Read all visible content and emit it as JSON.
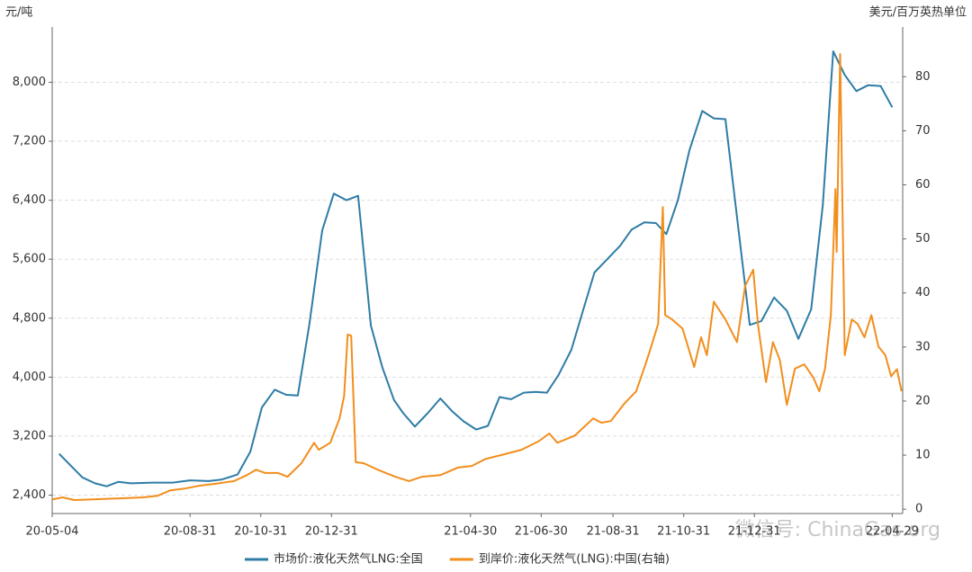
{
  "chart_data": {
    "type": "line",
    "y_label": "元/吨",
    "y2_label": "美元/百万英热单位",
    "watermark": "微信号: ChinaGas.org",
    "xlim": [
      "20-05-04",
      "22-05-08"
    ],
    "xticks": [
      "20-05-04",
      "20-08-31",
      "20-10-31",
      "20-12-31",
      "21-04-30",
      "21-06-30",
      "21-08-31",
      "21-10-31",
      "21-12-31",
      "22-04-29"
    ],
    "ylim": [
      2150,
      8750
    ],
    "yticks": [
      {
        "value": 2400,
        "label": "2,400"
      },
      {
        "value": 3200,
        "label": "3,200"
      },
      {
        "value": 4000,
        "label": "4,000"
      },
      {
        "value": 4800,
        "label": "4,800"
      },
      {
        "value": 5600,
        "label": "5,600"
      },
      {
        "value": 6400,
        "label": "6,400"
      },
      {
        "value": 7200,
        "label": "7,200"
      },
      {
        "value": 8000,
        "label": "8,000"
      }
    ],
    "y2lim": [
      -0.8,
      89.2
    ],
    "y2ticks": [
      0,
      10,
      20,
      30,
      40,
      50,
      60,
      70,
      80
    ],
    "grid": true,
    "series": [
      {
        "name": "市场价:液化天然气LNG:全国",
        "color": "#2e7ca6",
        "axis": "y",
        "x": [
          "20-05-10",
          "20-05-30",
          "20-06-10",
          "20-06-20",
          "20-06-30",
          "20-07-11",
          "20-07-30",
          "20-08-16",
          "20-08-31",
          "20-09-16",
          "20-09-27",
          "20-10-11",
          "20-10-22",
          "20-11-01",
          "20-11-12",
          "20-11-22",
          "20-12-02",
          "20-12-12",
          "20-12-23",
          "21-01-02",
          "21-01-13",
          "21-01-23",
          "21-02-03",
          "21-02-13",
          "21-02-23",
          "21-03-03",
          "21-03-13",
          "21-03-24",
          "21-04-04",
          "21-04-14",
          "21-04-24",
          "21-05-05",
          "21-05-15",
          "21-05-25",
          "21-06-04",
          "21-06-15",
          "21-06-25",
          "21-07-05",
          "21-07-15",
          "21-07-26",
          "21-08-05",
          "21-08-15",
          "21-08-26",
          "21-09-06",
          "21-09-16",
          "21-09-27",
          "21-10-07",
          "21-10-16",
          "21-10-26",
          "21-11-05",
          "21-11-16",
          "21-11-26",
          "21-12-06",
          "21-12-27",
          "22-01-06",
          "22-01-17",
          "22-01-28",
          "22-02-07",
          "22-02-18",
          "22-02-28",
          "22-03-09",
          "22-03-19",
          "22-03-29",
          "22-04-08",
          "22-04-19",
          "22-04-29"
        ],
        "values": [
          2960,
          2640,
          2560,
          2520,
          2580,
          2560,
          2570,
          2570,
          2600,
          2590,
          2610,
          2680,
          2990,
          3590,
          3830,
          3760,
          3750,
          4720,
          5990,
          6490,
          6400,
          6460,
          4700,
          4130,
          3690,
          3510,
          3330,
          3510,
          3710,
          3540,
          3400,
          3290,
          3340,
          3730,
          3700,
          3790,
          3800,
          3790,
          4030,
          4370,
          4900,
          5420,
          5600,
          5780,
          6000,
          6100,
          6090,
          5940,
          6400,
          7080,
          7610,
          7510,
          7500,
          4710,
          4760,
          5080,
          4900,
          4520,
          4920,
          6330,
          8420,
          8100,
          7880,
          7960,
          7950,
          7660
        ]
      },
      {
        "name": "到岸价:液化天然气(LNG):中国(右轴)",
        "color": "#f28e1c",
        "axis": "y2",
        "x": [
          "20-05-04",
          "20-05-13",
          "20-05-23",
          "20-06-06",
          "20-06-29",
          "20-07-22",
          "20-08-03",
          "20-08-14",
          "20-08-26",
          "20-09-07",
          "20-09-22",
          "20-10-08",
          "20-10-19",
          "20-10-27",
          "20-11-04",
          "20-11-15",
          "20-11-23",
          "20-12-05",
          "20-12-16",
          "20-12-20",
          "20-12-30",
          "21-01-07",
          "21-01-11",
          "21-01-14",
          "21-01-17",
          "21-01-21",
          "21-01-28",
          "21-02-09",
          "21-02-24",
          "21-03-08",
          "21-03-19",
          "21-04-04",
          "21-04-19",
          "21-05-01",
          "21-05-13",
          "21-05-28",
          "21-06-13",
          "21-06-28",
          "21-07-07",
          "21-07-14",
          "21-07-29",
          "21-08-14",
          "21-08-21",
          "21-08-29",
          "21-09-10",
          "21-09-20",
          "21-09-28",
          "21-10-03",
          "21-10-09",
          "21-10-12",
          "21-10-13",
          "21-10-15",
          "21-10-21",
          "21-10-30",
          "21-11-09",
          "21-11-15",
          "21-11-20",
          "21-11-26",
          "21-12-06",
          "21-12-16",
          "21-12-23",
          "21-12-30",
          "22-01-03",
          "22-01-10",
          "22-01-16",
          "22-01-22",
          "22-01-28",
          "22-02-04",
          "22-02-12",
          "22-02-20",
          "22-02-25",
          "22-03-02",
          "22-03-07",
          "22-03-11",
          "22-03-12",
          "22-03-15",
          "22-03-19",
          "22-03-25",
          "22-03-30",
          "22-04-05",
          "22-04-11",
          "22-04-17",
          "22-04-23",
          "22-04-28",
          "22-05-03",
          "22-05-07"
        ],
        "values": [
          1.8,
          2.2,
          1.7,
          1.8,
          2.0,
          2.2,
          2.5,
          3.5,
          3.8,
          4.3,
          4.7,
          5.2,
          6.3,
          7.3,
          6.7,
          6.7,
          6.0,
          8.5,
          12.3,
          11.0,
          12.3,
          16.8,
          21.0,
          32.3,
          32.1,
          8.7,
          8.5,
          7.3,
          6.0,
          5.2,
          6.0,
          6.3,
          7.7,
          8.0,
          9.3,
          10.1,
          11.0,
          12.6,
          14.0,
          12.3,
          13.6,
          16.8,
          16.0,
          16.3,
          19.6,
          21.8,
          26.8,
          30.1,
          34.3,
          50.6,
          55.9,
          35.9,
          35.1,
          33.4,
          26.3,
          31.8,
          28.5,
          38.4,
          35.1,
          30.9,
          41.3,
          44.3,
          34.3,
          23.5,
          30.9,
          27.6,
          19.3,
          26.0,
          26.8,
          24.3,
          21.8,
          26.0,
          35.9,
          59.2,
          47.6,
          84.2,
          28.5,
          35.1,
          34.3,
          31.8,
          35.9,
          30.1,
          28.5,
          24.6,
          25.9,
          21.8
        ]
      }
    ]
  }
}
